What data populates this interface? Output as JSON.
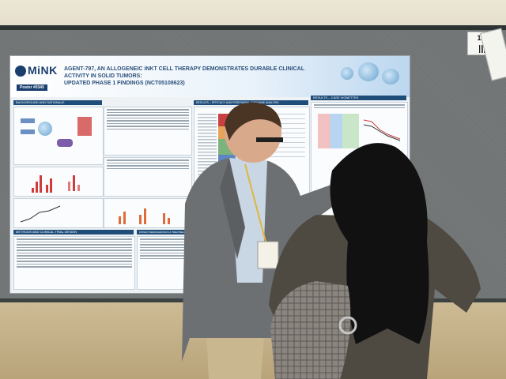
{
  "scene": {
    "booth_number": "134",
    "poster": {
      "logo": "MiNK",
      "poster_id": "Poster #0345",
      "title_line1": "AGENT-797, AN ALLOGENEIC iNKT CELL THERAPY DEMONSTRATES DURABLE CLINICAL ACTIVITY IN SOLID TUMORS:",
      "title_line2": "UPDATED PHASE 1 FINDINGS (NCT05108623)",
      "sections": {
        "background": "BACKGROUND AND RATIONALE",
        "methods": "METHODS AND CLINICAL TRIAL DESIGN",
        "demographics": "PATIENT DEMOGRAPHICS & TREATMENT DETAILS",
        "results_efficacy": "RESULTS – EFFICACY AND PERIPHERAL CYTOKINE ANALYSIS",
        "results_case": "RESULTS – CASE VIGNETTES"
      }
    },
    "people": [
      {
        "name": "man in gray blazer",
        "badge": true
      },
      {
        "name": "woman with long dark hair",
        "bag": "snakeskin handbag"
      }
    ]
  }
}
